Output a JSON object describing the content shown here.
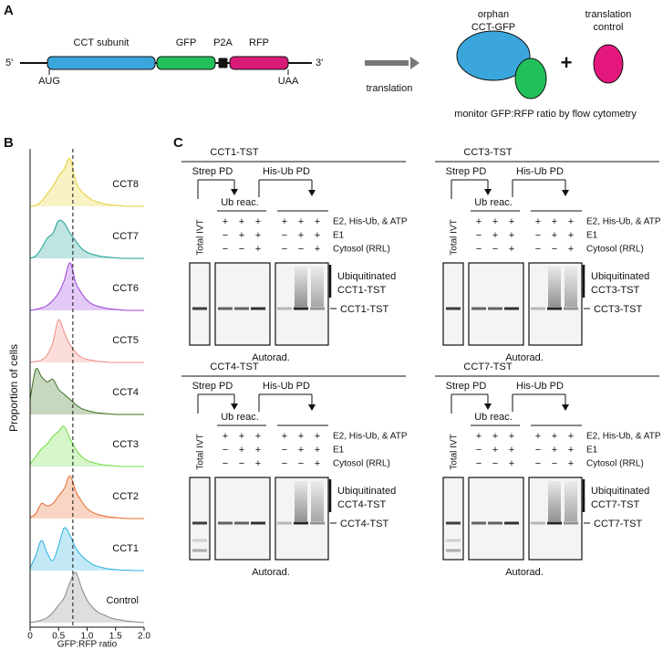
{
  "figure": {
    "panel_a": {
      "label": "A",
      "construct": {
        "five_prime": "5'",
        "three_prime": "3'",
        "start_codon": "AUG",
        "stop_codon": "UAA",
        "segments": [
          {
            "name": "CCT subunit",
            "color": "#3aa6dc"
          },
          {
            "name": "GFP",
            "color": "#22c05a"
          },
          {
            "name": "P2A",
            "color": "#111111"
          },
          {
            "name": "RFP",
            "color": "#d81b78"
          }
        ]
      },
      "arrow_label": "translation",
      "orphan_label": [
        "orphan",
        "CCT-GFP"
      ],
      "plus": "+",
      "control_label": [
        "translation",
        "control"
      ],
      "readout": "monitor GFP:RFP ratio by flow cytometry"
    },
    "panel_b": {
      "label": "B",
      "chart_data": {
        "type": "ridgeline",
        "ylabel": "Proportion of cells",
        "xlabel": "GFP:RFP ratio",
        "xlim": [
          0,
          2
        ],
        "xticks": [
          0,
          0.5,
          {
            "value": 1,
            "label": "1.0"
          },
          1.5,
          {
            "value": 2,
            "label": "2.0"
          }
        ],
        "reference_line": 0.75,
        "x": [
          0,
          0.1,
          0.2,
          0.3,
          0.4,
          0.5,
          0.6,
          0.7,
          0.8,
          0.9,
          1,
          1.1,
          1.2,
          1.3,
          1.4,
          1.5,
          1.6,
          1.7,
          1.8,
          1.9,
          2
        ],
        "series": [
          {
            "name": "CCT8",
            "color": "#e6cf2e",
            "values": [
              0,
              0.02,
              0.1,
              0.25,
              0.4,
              0.6,
              0.75,
              0.95,
              0.5,
              0.3,
              0.2,
              0.12,
              0.08,
              0.05,
              0.03,
              0.02,
              0.01,
              0,
              0,
              0,
              0
            ]
          },
          {
            "name": "CCT7",
            "color": "#1a9e94",
            "values": [
              0,
              0.05,
              0.2,
              0.4,
              0.5,
              0.75,
              0.7,
              0.5,
              0.35,
              0.2,
              0.12,
              0.08,
              0.05,
              0.03,
              0.02,
              0.01,
              0,
              0,
              0,
              0,
              0
            ]
          },
          {
            "name": "CCT6",
            "color": "#9a3ddb",
            "values": [
              0,
              0.02,
              0.05,
              0.1,
              0.2,
              0.35,
              0.6,
              0.95,
              0.55,
              0.35,
              0.2,
              0.12,
              0.08,
              0.05,
              0.03,
              0.02,
              0.01,
              0,
              0,
              0,
              0
            ]
          },
          {
            "name": "CCT5",
            "color": "#f08a80",
            "values": [
              0,
              0.02,
              0.05,
              0.15,
              0.4,
              0.85,
              0.6,
              0.35,
              0.2,
              0.1,
              0.06,
              0.04,
              0.02,
              0.01,
              0,
              0,
              0,
              0,
              0,
              0,
              0
            ]
          },
          {
            "name": "CCT4",
            "color": "#3a6f1d",
            "values": [
              0.3,
              0.9,
              0.75,
              0.65,
              0.7,
              0.5,
              0.4,
              0.3,
              0.2,
              0.12,
              0.08,
              0.05,
              0.03,
              0.02,
              0.01,
              0,
              0,
              0,
              0,
              0,
              0
            ]
          },
          {
            "name": "CCT3",
            "color": "#6cdc3c",
            "values": [
              0.05,
              0.2,
              0.35,
              0.45,
              0.6,
              0.7,
              0.8,
              0.55,
              0.35,
              0.2,
              0.12,
              0.08,
              0.05,
              0.03,
              0.02,
              0.01,
              0,
              0,
              0,
              0,
              0
            ]
          },
          {
            "name": "CCT2",
            "color": "#e8692a",
            "values": [
              0.02,
              0.1,
              0.3,
              0.25,
              0.3,
              0.45,
              0.6,
              0.85,
              0.55,
              0.35,
              0.2,
              0.12,
              0.08,
              0.05,
              0.03,
              0.02,
              0.01,
              0,
              0,
              0,
              0
            ]
          },
          {
            "name": "CCT1",
            "color": "#2ab0e0",
            "values": [
              0.05,
              0.3,
              0.6,
              0.35,
              0.2,
              0.5,
              0.85,
              0.7,
              0.45,
              0.3,
              0.2,
              0.12,
              0.08,
              0.05,
              0.03,
              0.02,
              0.01,
              0.01,
              0,
              0,
              0
            ]
          },
          {
            "name": "Control",
            "color": "#888888",
            "values": [
              0,
              0.02,
              0.05,
              0.1,
              0.2,
              0.35,
              0.5,
              0.8,
              1,
              0.7,
              0.45,
              0.3,
              0.2,
              0.15,
              0.1,
              0.07,
              0.05,
              0.03,
              0.02,
              0.01,
              0
            ]
          }
        ]
      }
    },
    "panel_c": {
      "label": "C",
      "gels": [
        {
          "title": "CCT1-TST",
          "strep_pd": "Strep PD",
          "his_pd": "His-Ub PD",
          "ub_reac": "Ub reac.",
          "total": "Total IVT",
          "conditions": [
            {
              "label": "E2, His-Ub, & ATP",
              "signs": [
                "+",
                "+",
                "+",
                "+",
                "+",
                "+"
              ]
            },
            {
              "label": "E1",
              "signs": [
                "−",
                "+",
                "+",
                "−",
                "+",
                "+"
              ]
            },
            {
              "label": "Cytosol (RRL)",
              "signs": [
                "−",
                "−",
                "+",
                "−",
                "−",
                "+"
              ]
            }
          ],
          "ubiquitinated": [
            "Ubiquitinated",
            "CCT1-TST"
          ],
          "band": "CCT1-TST",
          "autorad": "Autorad."
        },
        {
          "title": "CCT3-TST",
          "strep_pd": "Strep PD",
          "his_pd": "His-Ub PD",
          "ub_reac": "Ub reac.",
          "total": "Total IVT",
          "conditions": [
            {
              "label": "E2, His-Ub, & ATP",
              "signs": [
                "+",
                "+",
                "+",
                "+",
                "+",
                "+"
              ]
            },
            {
              "label": "E1",
              "signs": [
                "−",
                "+",
                "+",
                "−",
                "+",
                "+"
              ]
            },
            {
              "label": "Cytosol (RRL)",
              "signs": [
                "−",
                "−",
                "+",
                "−",
                "−",
                "+"
              ]
            }
          ],
          "ubiquitinated": [
            "Ubiquitinated",
            "CCT3-TST"
          ],
          "band": "CCT3-TST",
          "autorad": "Autorad."
        },
        {
          "title": "CCT4-TST",
          "strep_pd": "Strep PD",
          "his_pd": "His-Ub PD",
          "ub_reac": "Ub reac.",
          "total": "Total IVT",
          "conditions": [
            {
              "label": "E2, His-Ub, & ATP",
              "signs": [
                "+",
                "+",
                "+",
                "+",
                "+",
                "+"
              ]
            },
            {
              "label": "E1",
              "signs": [
                "−",
                "+",
                "+",
                "−",
                "+",
                "+"
              ]
            },
            {
              "label": "Cytosol (RRL)",
              "signs": [
                "−",
                "−",
                "+",
                "−",
                "−",
                "+"
              ]
            }
          ],
          "ubiquitinated": [
            "Ubiquitinated",
            "CCT4-TST"
          ],
          "band": "CCT4-TST",
          "autorad": "Autorad."
        },
        {
          "title": "CCT7-TST",
          "strep_pd": "Strep PD",
          "his_pd": "His-Ub PD",
          "ub_reac": "Ub reac.",
          "total": "Total IVT",
          "conditions": [
            {
              "label": "E2, His-Ub, & ATP",
              "signs": [
                "+",
                "+",
                "+",
                "+",
                "+",
                "+"
              ]
            },
            {
              "label": "E1",
              "signs": [
                "−",
                "+",
                "+",
                "−",
                "+",
                "+"
              ]
            },
            {
              "label": "Cytosol (RRL)",
              "signs": [
                "−",
                "−",
                "+",
                "−",
                "−",
                "+"
              ]
            }
          ],
          "ubiquitinated": [
            "Ubiquitinated",
            "CCT7-TST"
          ],
          "band": "CCT7-TST",
          "autorad": "Autorad."
        }
      ]
    }
  }
}
